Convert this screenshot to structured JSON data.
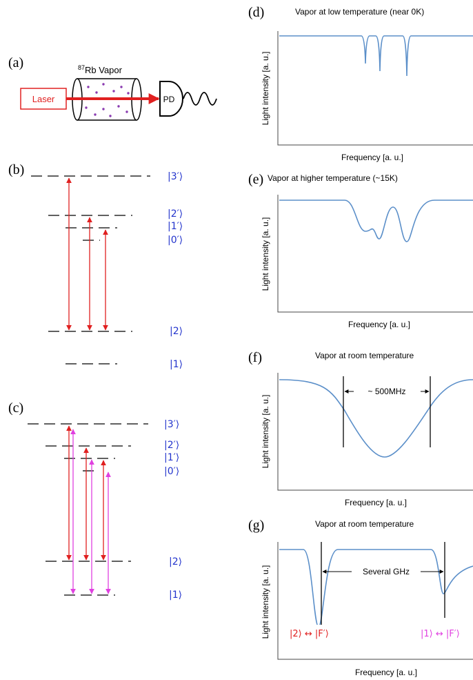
{
  "panel_a": {
    "label": "(a)",
    "vapor_sup": "87",
    "vapor": "Rb Vapor",
    "laser": "Laser",
    "detector": "PD"
  },
  "panel_b": {
    "label": "(b)",
    "levels": [
      "|3′⟩",
      "|2′⟩",
      "|1′⟩",
      "|0′⟩",
      "|2⟩",
      "|1⟩"
    ]
  },
  "panel_c": {
    "label": "(c)",
    "levels": [
      "|3′⟩",
      "|2′⟩",
      "|1′⟩",
      "|0′⟩",
      "|2⟩",
      "|1⟩"
    ]
  },
  "panel_d": {
    "label": "(d)",
    "title": "Vapor at low temperature (near 0K)",
    "y_label": "Light intensity [a. u.]",
    "x_label": "Frequency [a. u.]"
  },
  "panel_e": {
    "label": "(e)",
    "title": "Vapor at higher temperature (~15K)",
    "y_label": "Light intensity [a. u.]",
    "x_label": "Frequency [a. u.]"
  },
  "panel_f": {
    "label": "(f)",
    "title": "Vapor at room temperature",
    "y_label": "Light intensity [a. u.]",
    "x_label": "Frequency [a. u.]",
    "width_label": "~ 500MHz"
  },
  "panel_g": {
    "label": "(g)",
    "title": "Vapor at room temperature",
    "y_label": "Light intensity [a. u.]",
    "x_label": "Frequency [a. u.]",
    "spacing_label": "Several GHz",
    "left_dip": "|2⟩ ↔ |F′⟩",
    "right_dip": "|1⟩ ↔ |F′⟩"
  }
}
